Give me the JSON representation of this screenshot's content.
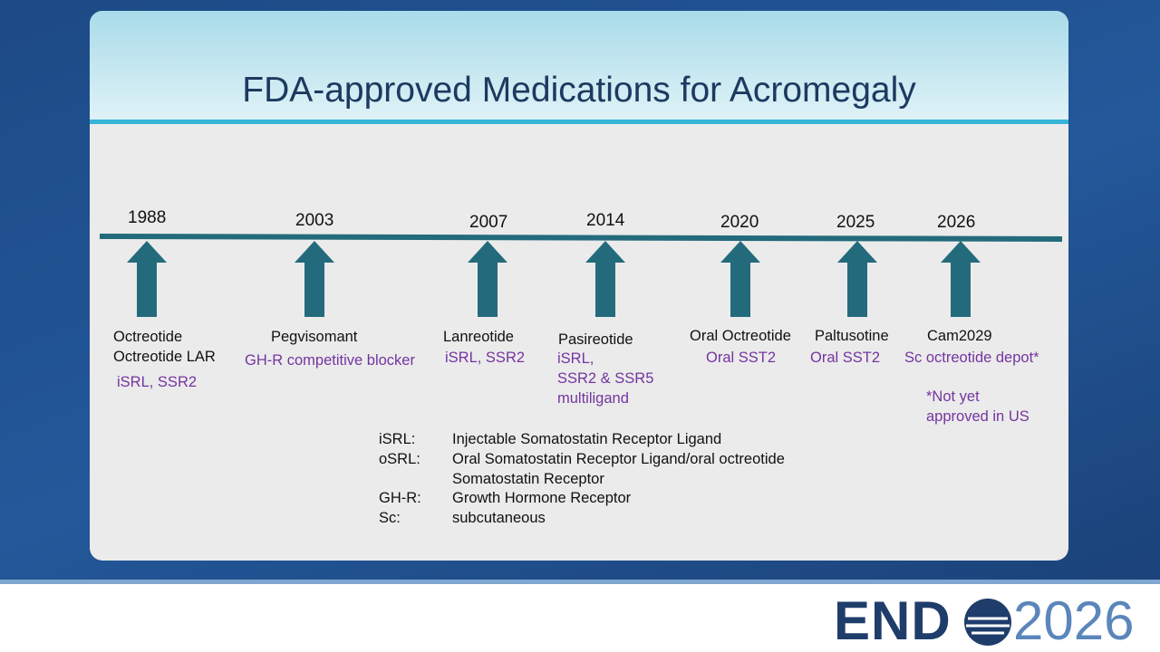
{
  "title": "FDA-approved Medications for Acromegaly",
  "timeline": [
    {
      "year": "1988",
      "names": [
        "Octreotide",
        "Octreotide LAR"
      ],
      "details": [
        "iSRL, SSR2"
      ]
    },
    {
      "year": "2003",
      "names": [
        "Pegvisomant"
      ],
      "details": [
        "GH-R competitive blocker"
      ]
    },
    {
      "year": "2007",
      "names": [
        "Lanreotide"
      ],
      "details": [
        "iSRL, SSR2"
      ]
    },
    {
      "year": "2014",
      "names": [
        "Pasireotide"
      ],
      "details": [
        "iSRL,",
        "SSR2 & SSR5",
        "multiligand"
      ]
    },
    {
      "year": "2020",
      "names": [
        "Oral Octreotide"
      ],
      "details": [
        "Oral SST2"
      ]
    },
    {
      "year": "2025",
      "names": [
        "Paltusotine"
      ],
      "details": [
        "Oral SST2"
      ]
    },
    {
      "year": "2026",
      "names": [
        "Cam2029"
      ],
      "details": [
        "Sc octreotide depot*"
      ],
      "note": [
        "*Not yet",
        "approved in US"
      ]
    }
  ],
  "abbreviations": [
    {
      "abbr": "iSRL:",
      "definition": "Injectable Somatostatin Receptor Ligand"
    },
    {
      "abbr": "oSRL:",
      "definition": "Oral Somatostatin Receptor Ligand/oral octreotide"
    },
    {
      "definition": "Somatostatin Receptor"
    },
    {
      "abbr": "GH-R:",
      "definition": "Growth Hormone Receptor"
    },
    {
      "abbr": "Sc:",
      "definition": "subcutaneous"
    }
  ],
  "logo": {
    "left": "END",
    "right": "2026"
  }
}
